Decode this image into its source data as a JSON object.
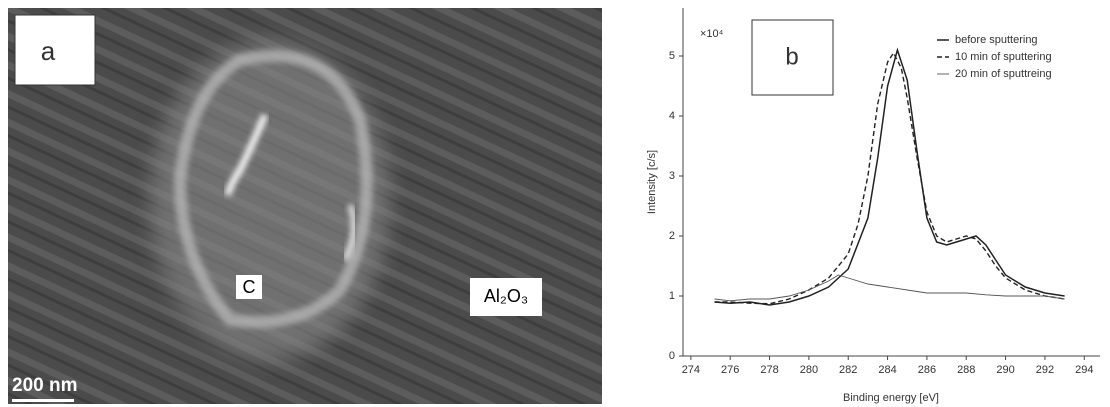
{
  "image_panel": {
    "panel_label": "a",
    "region_labels": [
      "C",
      "Al₂O₃"
    ],
    "scale_bar": "200 nm"
  },
  "chart_data": {
    "type": "line",
    "panel_label": "b",
    "x_label": "Binding energy [eV]",
    "y_label": "Intensity [c/s]",
    "multiplier": "×10⁴",
    "xlim": [
      273.6,
      294.8
    ],
    "xticks": [
      274,
      276,
      278,
      280,
      282,
      284,
      286,
      288,
      290,
      292,
      294
    ],
    "ylim": [
      0,
      5.8
    ],
    "yticks": [
      0,
      1,
      2,
      3,
      4,
      5
    ],
    "grid": false,
    "legend": "top-right",
    "series": [
      {
        "name": "before sputtering",
        "color": "#222222",
        "style": "solid",
        "x": [
          275.2,
          276,
          277,
          278,
          279,
          280,
          281,
          282,
          283,
          283.5,
          284,
          284.5,
          285,
          285.5,
          286,
          286.5,
          287,
          287.5,
          288,
          288.5,
          289,
          289.5,
          290,
          291,
          292,
          293
        ],
        "values": [
          0.9,
          0.88,
          0.9,
          0.85,
          0.9,
          1.0,
          1.15,
          1.45,
          2.3,
          3.3,
          4.5,
          5.1,
          4.6,
          3.4,
          2.3,
          1.9,
          1.85,
          1.9,
          1.95,
          2.0,
          1.85,
          1.6,
          1.35,
          1.15,
          1.05,
          1.0
        ]
      },
      {
        "name": "10 min of sputtering",
        "color": "#222222",
        "style": "dashed",
        "x": [
          275.2,
          276,
          277,
          278,
          279,
          280,
          281,
          282,
          282.5,
          283,
          283.5,
          284,
          284.3,
          284.7,
          285,
          285.5,
          286,
          286.5,
          287,
          287.5,
          288,
          288.5,
          289,
          289.5,
          290,
          291,
          292,
          293
        ],
        "values": [
          0.9,
          0.9,
          0.88,
          0.87,
          0.95,
          1.1,
          1.3,
          1.7,
          2.2,
          3.0,
          4.2,
          4.9,
          5.05,
          4.8,
          4.3,
          3.3,
          2.4,
          2.0,
          1.9,
          1.95,
          2.0,
          1.95,
          1.75,
          1.5,
          1.3,
          1.1,
          1.0,
          0.95
        ]
      },
      {
        "name": "20 min of sputtreing",
        "color": "#555555",
        "style": "thin",
        "x": [
          275.2,
          276,
          277,
          278,
          279,
          280,
          281,
          281.5,
          282,
          283,
          284,
          285,
          286,
          287,
          288,
          289,
          290,
          291,
          292,
          293
        ],
        "values": [
          0.95,
          0.92,
          0.95,
          0.95,
          1.0,
          1.1,
          1.25,
          1.35,
          1.3,
          1.2,
          1.15,
          1.1,
          1.05,
          1.05,
          1.05,
          1.02,
          1.0,
          1.0,
          1.0,
          0.95
        ]
      }
    ]
  }
}
